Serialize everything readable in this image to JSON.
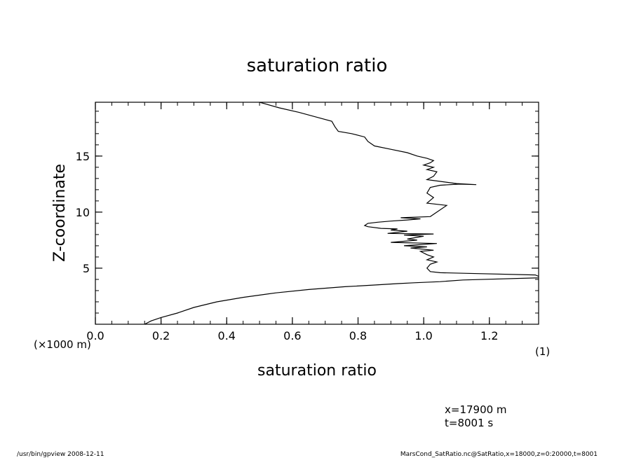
{
  "chart_data": {
    "type": "line",
    "title": "saturation ratio",
    "xlabel": "saturation ratio",
    "ylabel": "Z-coordinate",
    "x_unit": "(1)",
    "y_unit": "(×1000 m)",
    "xlim": [
      0.0,
      1.35
    ],
    "ylim": [
      0.0,
      19.8
    ],
    "x_ticks": [
      {
        "value": 0.0,
        "label": "0.0"
      },
      {
        "value": 0.2,
        "label": "0.2"
      },
      {
        "value": 0.4,
        "label": "0.4"
      },
      {
        "value": 0.6,
        "label": "0.6"
      },
      {
        "value": 0.8,
        "label": "0.8"
      },
      {
        "value": 1.0,
        "label": "1.0"
      },
      {
        "value": 1.2,
        "label": "1.2"
      }
    ],
    "y_ticks": [
      {
        "value": 5,
        "label": "5"
      },
      {
        "value": 10,
        "label": "10"
      },
      {
        "value": 15,
        "label": "15"
      }
    ],
    "grid": false,
    "series": [
      {
        "x": [
          0.15,
          0.17,
          0.2,
          0.25,
          0.3,
          0.37,
          0.45,
          0.55,
          0.65,
          0.76,
          0.85,
          0.92,
          0.97,
          1.05,
          1.12,
          1.36,
          1.34,
          1.12,
          1.05,
          1.02,
          1.01,
          1.02,
          1.04,
          1.01,
          1.03,
          1.01,
          0.99,
          1.03,
          0.96,
          1.01,
          0.94,
          1.04,
          0.9,
          0.98,
          0.95,
          0.98,
          1.0,
          0.94,
          1.03,
          0.89,
          0.95,
          0.9,
          0.92,
          0.87,
          0.83,
          0.82,
          0.83,
          0.86,
          0.9,
          0.95,
          0.99,
          0.93,
          1.02,
          1.07,
          1.01,
          1.03,
          1.01,
          1.02,
          1.05,
          1.11,
          1.16,
          1.1,
          1.01,
          1.03,
          1.04,
          1.01,
          1.03,
          1.0,
          1.02,
          1.03,
          1.01,
          0.98,
          0.95,
          0.9,
          0.85,
          0.83,
          0.82,
          0.78,
          0.74,
          0.73,
          0.72,
          0.67,
          0.62,
          0.56,
          0.5
        ],
        "y": [
          0.0,
          0.3,
          0.6,
          1.0,
          1.5,
          2.0,
          2.4,
          2.8,
          3.1,
          3.35,
          3.5,
          3.62,
          3.7,
          3.8,
          3.95,
          4.15,
          4.4,
          4.55,
          4.6,
          4.7,
          5.0,
          5.35,
          5.55,
          5.75,
          6.0,
          6.2,
          6.5,
          6.6,
          6.8,
          6.9,
          7.0,
          7.2,
          7.3,
          7.5,
          7.6,
          7.75,
          7.85,
          7.95,
          8.05,
          8.1,
          8.3,
          8.4,
          8.5,
          8.55,
          8.7,
          8.8,
          9.0,
          9.1,
          9.2,
          9.3,
          9.4,
          9.5,
          9.6,
          10.6,
          10.8,
          11.3,
          11.7,
          12.2,
          12.4,
          12.5,
          12.45,
          12.55,
          12.9,
          13.2,
          13.6,
          13.8,
          14.0,
          14.2,
          14.4,
          14.6,
          14.8,
          15.0,
          15.3,
          15.6,
          15.9,
          16.3,
          16.7,
          17.0,
          17.2,
          17.6,
          18.1,
          18.5,
          18.9,
          19.3,
          19.8
        ]
      }
    ]
  },
  "annotations": {
    "x_position": "x=17900 m",
    "time": "t=8001 s"
  },
  "footer": {
    "left": "/usr/bin/gpview   2008-12-11",
    "right": "MarsCond_SatRatio.nc@SatRatio,x=18000,z=0:20000,t=8001"
  }
}
